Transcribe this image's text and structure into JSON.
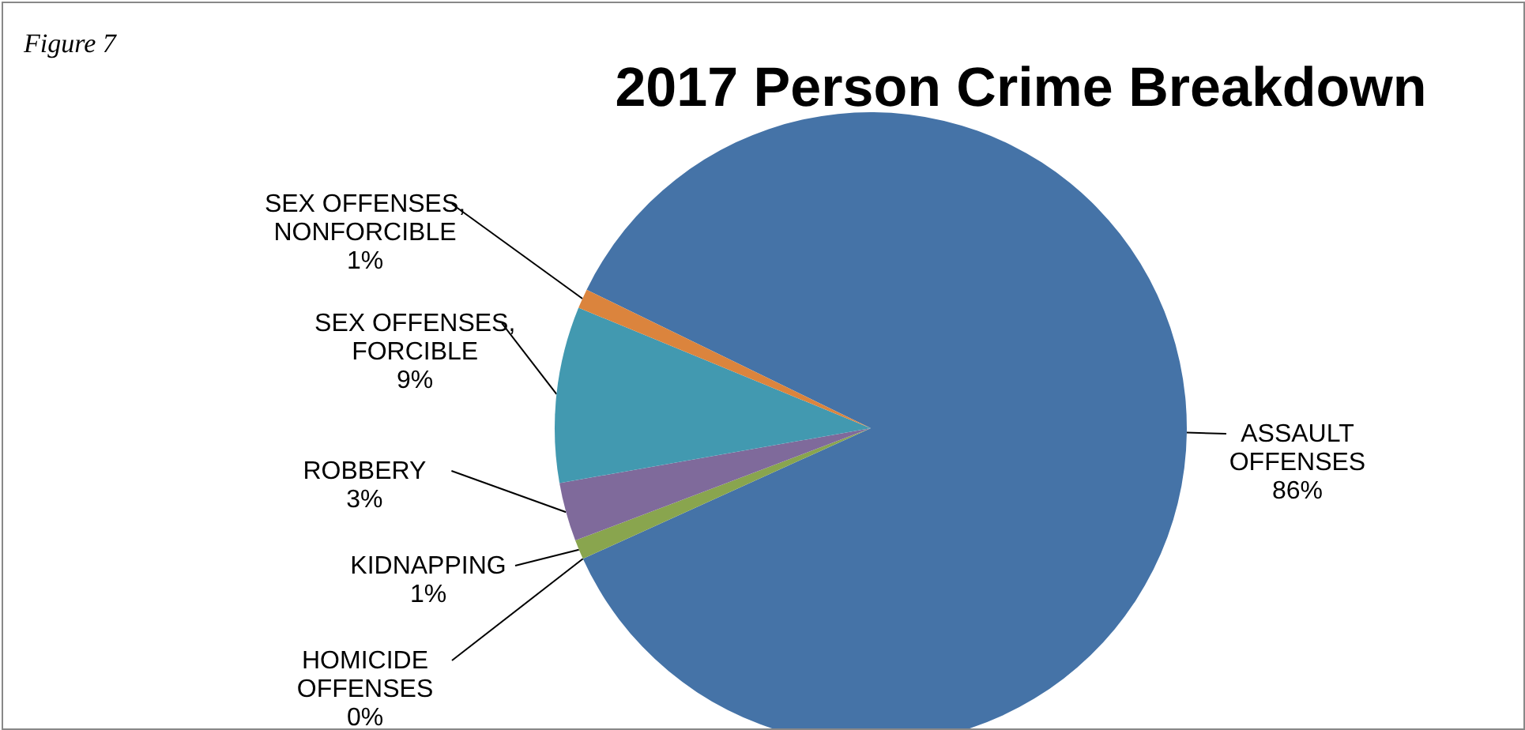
{
  "chart_data": {
    "type": "pie",
    "title": "2017 Person Crime Breakdown",
    "categories": [
      "ASSAULT OFFENSES",
      "HOMICIDE OFFENSES",
      "KIDNAPPING",
      "ROBBERY",
      "SEX OFFENSES, FORCIBLE",
      "SEX OFFENSES, NONFORCIBLE"
    ],
    "values": [
      86,
      0,
      1,
      3,
      9,
      1
    ],
    "colors": [
      "#4573a7",
      "#aa4643",
      "#89a54e",
      "#7f6a9b",
      "#4299b0",
      "#db843d"
    ],
    "value_labels": [
      "86%",
      "0%",
      "1%",
      "3%",
      "9%",
      "1%"
    ],
    "annotations": [
      "Figure 7"
    ]
  }
}
